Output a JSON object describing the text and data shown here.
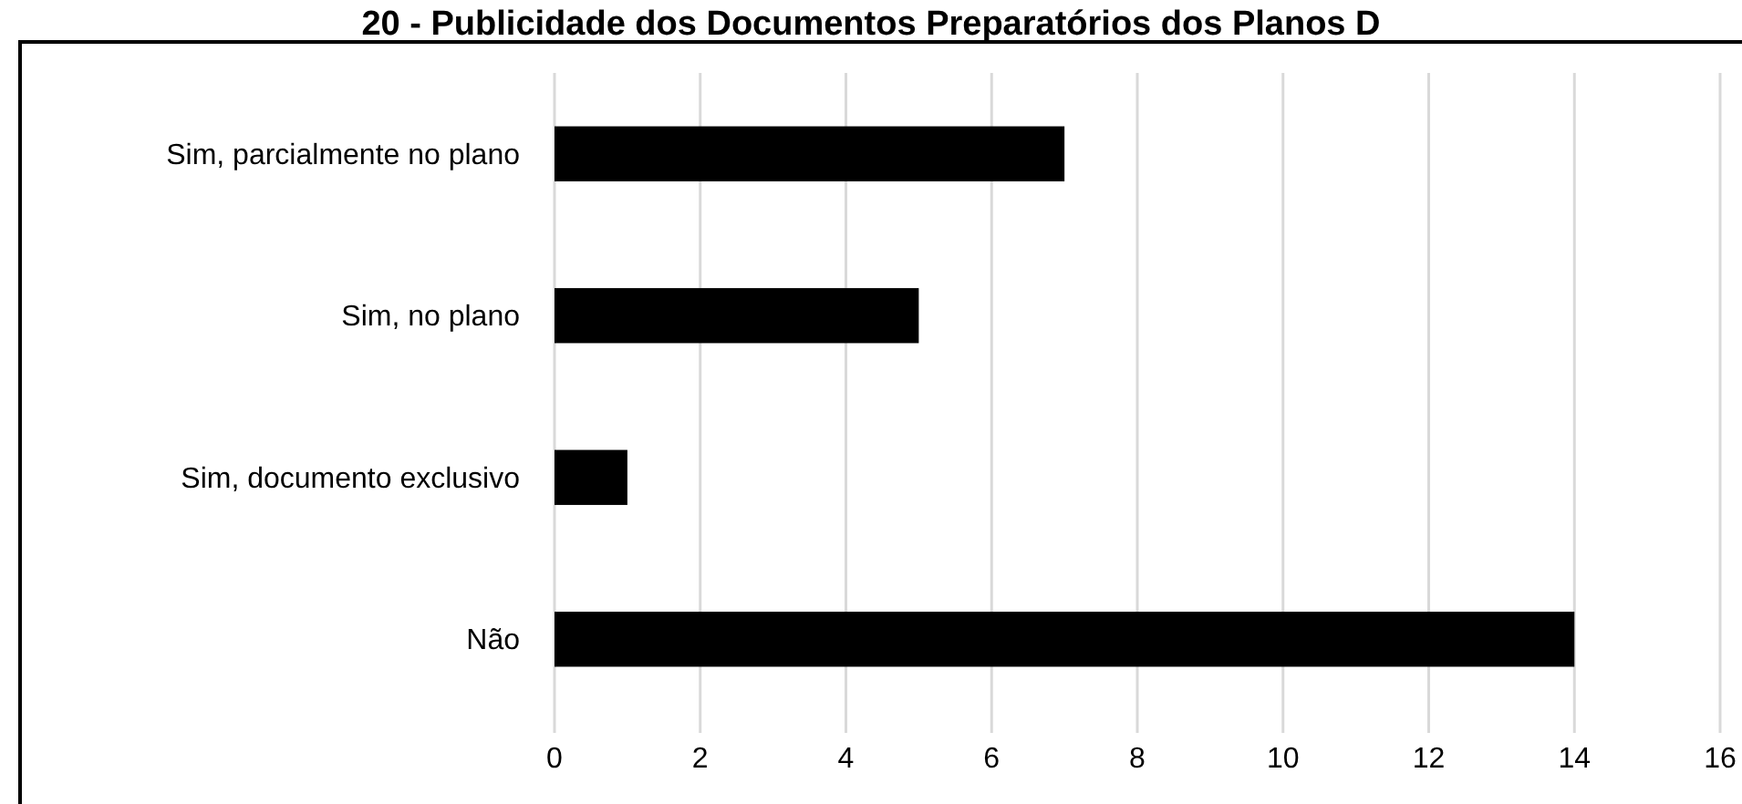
{
  "chart_data": {
    "type": "bar",
    "orientation": "horizontal",
    "title": "20 - Publicidade dos Documentos Preparatórios dos Planos D",
    "categories": [
      "Sim, parcialmente no plano",
      "Sim, no plano",
      "Sim, documento exclusivo",
      "Não"
    ],
    "values": [
      7,
      5,
      1,
      14
    ],
    "color": "#000000",
    "xlim": [
      0,
      16
    ],
    "xticks": [
      0,
      2,
      4,
      6,
      8,
      10,
      12,
      14,
      16
    ],
    "grid": "x"
  }
}
